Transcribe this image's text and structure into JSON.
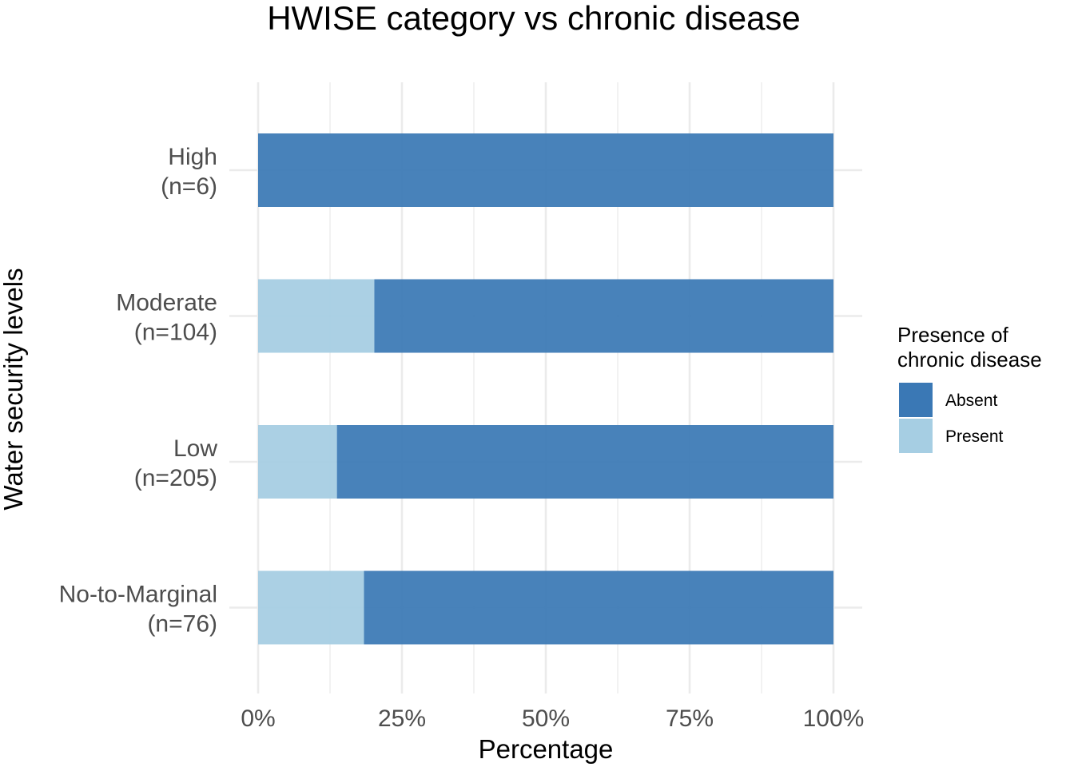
{
  "chart_data": {
    "type": "bar",
    "orientation": "horizontal",
    "stacked": true,
    "title": "HWISE category vs chronic disease",
    "xlabel": "Percentage",
    "ylabel": "Water security levels",
    "xlim": [
      0,
      100
    ],
    "xticks": [
      "0%",
      "25%",
      "50%",
      "75%",
      "100%"
    ],
    "categories": [
      {
        "name": "High",
        "n_label": "(n=6)"
      },
      {
        "name": "Moderate",
        "n_label": "(n=104)"
      },
      {
        "name": "Low",
        "n_label": "(n=205)"
      },
      {
        "name": "No-to-Marginal",
        "n_label": "(n=76)"
      }
    ],
    "series": [
      {
        "name": "Present",
        "color": "#a6cee3",
        "values": [
          0,
          20.2,
          13.7,
          18.4
        ]
      },
      {
        "name": "Absent",
        "color": "#3a78b5",
        "values": [
          100,
          79.8,
          86.3,
          81.6
        ]
      }
    ],
    "legend": {
      "title_lines": [
        "Presence of",
        "chronic disease"
      ],
      "items": [
        {
          "label": "Absent",
          "color": "#3a78b5"
        },
        {
          "label": "Present",
          "color": "#a6cee3"
        }
      ],
      "position": "right"
    },
    "grid": true
  }
}
